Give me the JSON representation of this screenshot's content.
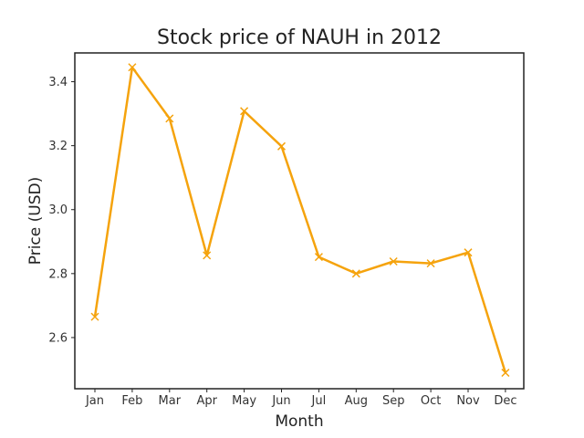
{
  "chart_data": {
    "type": "line",
    "title": "Stock price of NAUH in 2012",
    "xlabel": "Month",
    "ylabel": "Price (USD)",
    "categories": [
      "Jan",
      "Feb",
      "Mar",
      "Apr",
      "May",
      "Jun",
      "Jul",
      "Aug",
      "Sep",
      "Oct",
      "Nov",
      "Dec"
    ],
    "series": [
      {
        "values": [
          2.665,
          3.445,
          3.285,
          2.857,
          3.308,
          3.198,
          2.852,
          2.8,
          2.838,
          2.832,
          2.866,
          2.49
        ],
        "color": "#f5a30d",
        "marker": "x"
      }
    ],
    "ylim": [
      2.44,
      3.49
    ],
    "yticks": [
      "2.6",
      "2.8",
      "3.0",
      "3.2",
      "3.4"
    ],
    "grid": false
  }
}
